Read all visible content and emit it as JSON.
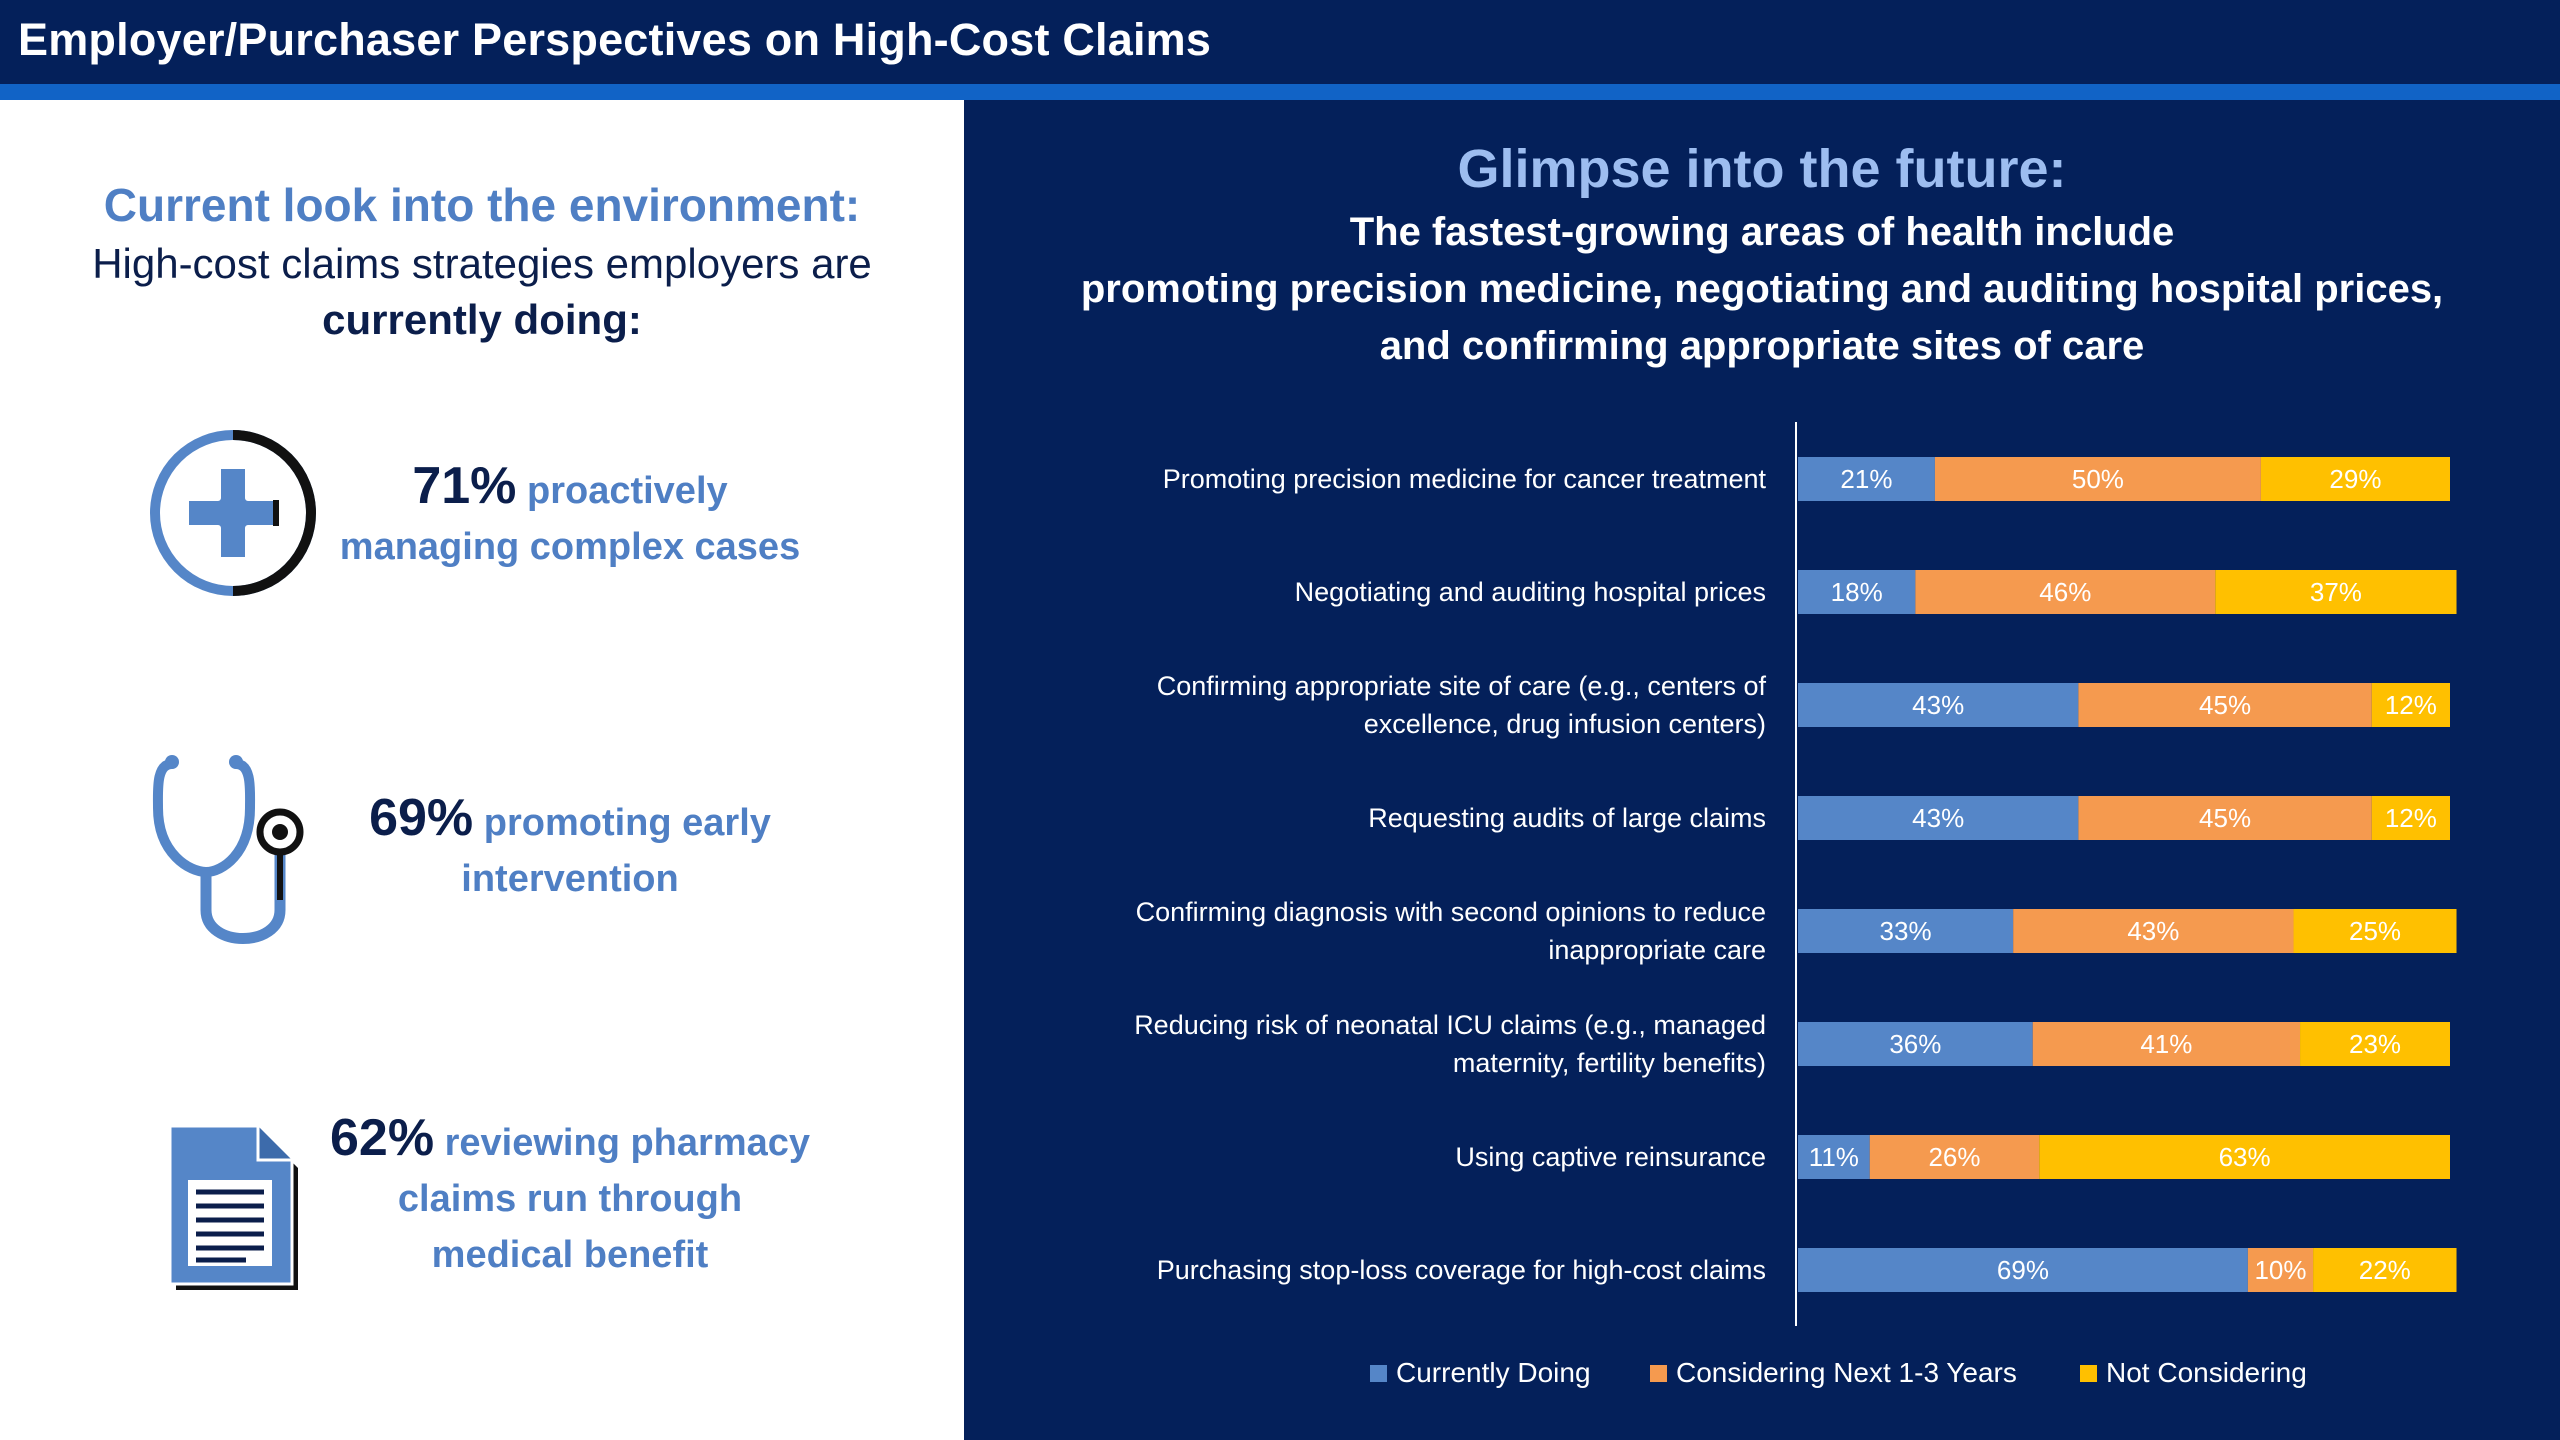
{
  "header": {
    "title": "Employer/Purchaser Perspectives on High-Cost Claims"
  },
  "left": {
    "heading": "Current look into the environment:",
    "subheading_line1": "High-cost claims strategies employers are",
    "subheading_line2": "currently doing:",
    "stats": [
      {
        "icon": "medical-cross-icon",
        "pct": "71%",
        "line1": "proactively",
        "line2": "managing complex cases"
      },
      {
        "icon": "stethoscope-icon",
        "pct": "69%",
        "line1": "promoting early",
        "line2": "intervention"
      },
      {
        "icon": "document-icon",
        "pct": "62%",
        "line1": "reviewing pharmacy",
        "line2": "claims run through",
        "line3": "medical benefit"
      }
    ]
  },
  "right": {
    "title": "Glimpse into the future:",
    "subtitle_line1": "The fastest-growing areas of health include",
    "subtitle_line2": "promoting precision medicine, negotiating and auditing hospital prices,",
    "subtitle_line3": "and confirming appropriate sites of care"
  },
  "colors": {
    "currently": "#5586c8",
    "considering": "#f59a4f",
    "not": "#ffc000",
    "navy": "#04205a",
    "stripe": "#1163c6"
  },
  "chart_data": {
    "type": "bar",
    "orientation": "horizontal",
    "stacked": true,
    "categories": [
      [
        "Promoting precision medicine for cancer treatment"
      ],
      [
        "Negotiating and auditing hospital prices"
      ],
      [
        "Confirming appropriate site of care (e.g., centers of",
        "excellence, drug infusion centers)"
      ],
      [
        "Requesting audits of large claims"
      ],
      [
        "Confirming diagnosis with second opinions to reduce",
        "inappropriate care"
      ],
      [
        "Reducing risk of neonatal ICU claims (e.g., managed",
        "maternity, fertility benefits)"
      ],
      [
        "Using captive reinsurance"
      ],
      [
        "Purchasing stop-loss coverage for high-cost claims"
      ]
    ],
    "series": [
      {
        "name": "Currently Doing",
        "color": "#5586c8",
        "values": [
          21,
          18,
          43,
          43,
          33,
          36,
          11,
          69
        ]
      },
      {
        "name": "Considering Next 1-3 Years",
        "color": "#f59a4f",
        "values": [
          50,
          46,
          45,
          45,
          43,
          41,
          26,
          10
        ]
      },
      {
        "name": "Not Considering",
        "color": "#ffc000",
        "values": [
          29,
          37,
          12,
          12,
          25,
          23,
          63,
          22
        ]
      }
    ],
    "value_suffix": "%",
    "legend_position": "bottom"
  }
}
